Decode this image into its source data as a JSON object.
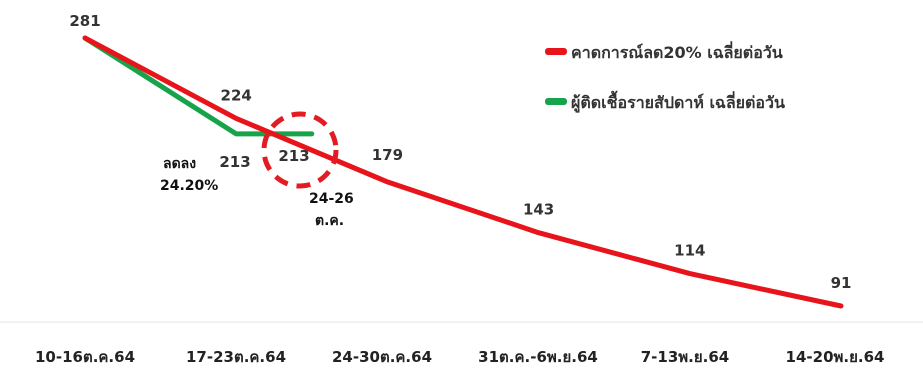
{
  "chart_data": {
    "type": "line",
    "categories": [
      "10-16ต.ค.64",
      "17-23ต.ค.64",
      "24-30ต.ค.64",
      "31ต.ค.-6พ.ย.64",
      "7-13พ.ย.64",
      "14-20พ.ย.64"
    ],
    "series": [
      {
        "name": "คาดการณ์ลด20% เฉลี่ยต่อวัน",
        "color": "#e8141b",
        "x": [
          0,
          1,
          2,
          3,
          4,
          5
        ],
        "values": [
          281,
          224,
          179,
          143,
          114,
          91
        ],
        "labels": [
          "281",
          "224",
          "179",
          "143",
          "114",
          "91"
        ]
      },
      {
        "name": "ผู้ติดเชื้อรายสัปดาห์ เฉลี่ยต่อวัน",
        "color": "#16a34a",
        "x": [
          0,
          1,
          1.5
        ],
        "values": [
          281,
          213,
          213
        ],
        "labels": [
          "213",
          "213"
        ]
      }
    ],
    "annotations": {
      "decrease_line1": "ลดลง",
      "decrease_line2": "24.20%",
      "date_line1": "24-26",
      "date_line2": "ต.ค."
    },
    "ylim": [
      60,
      300
    ],
    "grid": false,
    "legend_position": "top-right"
  }
}
